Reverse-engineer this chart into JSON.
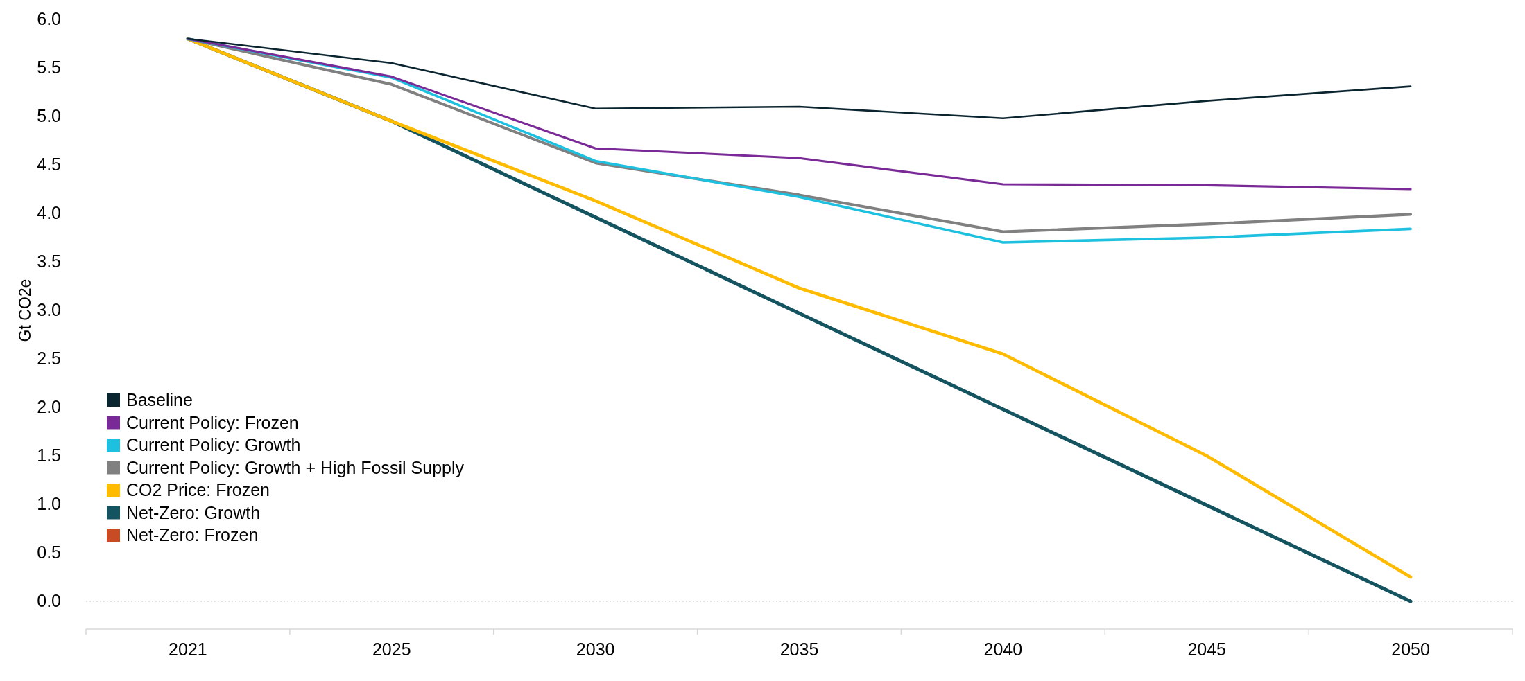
{
  "chart_data": {
    "type": "line",
    "ylabel": "Gt CO2e",
    "categories": [
      "2021",
      "2025",
      "2030",
      "2035",
      "2040",
      "2045",
      "2050"
    ],
    "ylim": [
      0,
      6
    ],
    "yticks": [
      {
        "value": 0,
        "label": "0.0"
      },
      {
        "value": 0.5,
        "label": "0.5"
      },
      {
        "value": 1,
        "label": "1.0"
      },
      {
        "value": 1.5,
        "label": "1.5"
      },
      {
        "value": 2,
        "label": "2.0"
      },
      {
        "value": 2.5,
        "label": "2.5"
      },
      {
        "value": 3,
        "label": "3.0"
      },
      {
        "value": 3.5,
        "label": "3.5"
      },
      {
        "value": 4,
        "label": "4.0"
      },
      {
        "value": 4.5,
        "label": "4.5"
      },
      {
        "value": 5,
        "label": "5.0"
      },
      {
        "value": 5.5,
        "label": "5.5"
      },
      {
        "value": 6,
        "label": "6.0"
      }
    ],
    "grid": false,
    "legend": "bottom left",
    "marker": "none",
    "line_style": "solid",
    "ref_lines": [
      {
        "axis": "y",
        "value": 0,
        "color": "#d9d9d9",
        "line_style": "dotted"
      }
    ],
    "series": [
      {
        "name": "Baseline",
        "color": "#0b2530",
        "values": [
          5.8,
          5.55,
          5.08,
          5.1,
          4.98,
          5.16,
          5.31
        ]
      },
      {
        "name": "Current Policy: Frozen",
        "color": "#7a2a96",
        "values": [
          5.8,
          5.41,
          4.67,
          4.57,
          4.3,
          4.29,
          4.25
        ]
      },
      {
        "name": "Current Policy: Growth",
        "color": "#1ec0e0",
        "values": [
          5.8,
          5.4,
          4.54,
          4.17,
          3.7,
          3.75,
          3.84
        ]
      },
      {
        "name": "Current Policy: Growth + High Fossil Supply",
        "color": "#808080",
        "values": [
          5.8,
          5.33,
          4.52,
          4.19,
          3.81,
          3.89,
          3.99
        ]
      },
      {
        "name": "CO2 Price: Frozen",
        "color": "#ffbb00",
        "values": [
          5.8,
          4.95,
          4.13,
          3.23,
          2.55,
          1.5,
          0.25
        ]
      },
      {
        "name": "Net-Zero: Growth",
        "color": "#145460",
        "values": [
          5.8,
          4.95,
          3.96,
          2.97,
          1.98,
          0.99,
          0
        ]
      },
      {
        "name": "Net-Zero: Frozen",
        "color": "#c84b24",
        "values": [
          null,
          null,
          null,
          null,
          null,
          null,
          null
        ]
      }
    ]
  }
}
